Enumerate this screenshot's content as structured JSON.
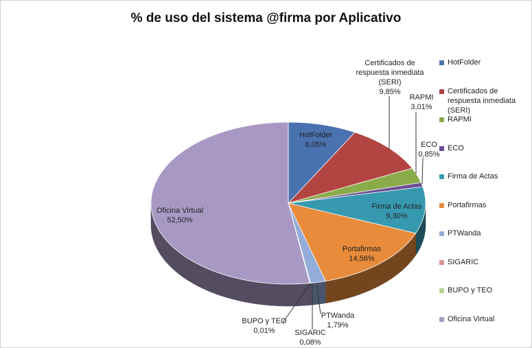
{
  "chart_data": {
    "type": "pie",
    "title": "% de uso del sistema @firma por Aplicativo",
    "categories": [
      "HotFolder",
      "Certificados de respuesta inmediata (SERI)",
      "RAPMI",
      "ECO",
      "Firma de Actas",
      "Portafirmas",
      "PTWanda",
      "SIGARIC",
      "BUPO y TEO",
      "Oficina Virtual"
    ],
    "values": [
      8.05,
      9.85,
      3.01,
      0.85,
      9.3,
      14.56,
      1.79,
      0.08,
      0.01,
      52.5
    ],
    "value_labels": [
      "8,05%",
      "9,85%",
      "3,01%",
      "0,85%",
      "9,30%",
      "14,56%",
      "1,79%",
      "0,08%",
      "0,01%",
      "52,50%"
    ],
    "colors": [
      "#4a72b0",
      "#b24542",
      "#8aab4a",
      "#6e4d94",
      "#3799b0",
      "#e88b3a",
      "#94acd8",
      "#d89392",
      "#b7d190",
      "#a899c4"
    ],
    "legend": "right"
  }
}
